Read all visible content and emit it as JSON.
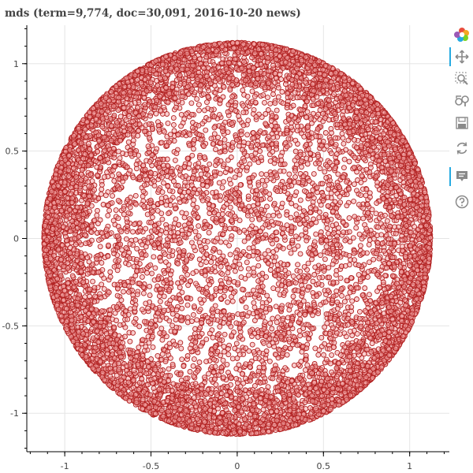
{
  "title": "mds (term=9,774, doc=30,091, 2016-10-20 news)",
  "chart_data": {
    "type": "scatter",
    "title": "mds (term=9,774, doc=30,091, 2016-10-20 news)",
    "xlabel": "",
    "ylabel": "",
    "xlim": [
      -1.22,
      1.23
    ],
    "ylim": [
      -1.22,
      1.22
    ],
    "xticks": [
      -1,
      -0.5,
      0,
      0.5,
      1
    ],
    "yticks": [
      -1,
      -0.5,
      0,
      0.5,
      1
    ],
    "xtick_labels": [
      "-1",
      "-0.5",
      "0",
      "0.5",
      "1"
    ],
    "ytick_labels": [
      "-1",
      "-0.5",
      "0",
      "0.5",
      "1"
    ],
    "grid": true,
    "point_count": 9774,
    "disk_radius": 1.12,
    "disk_center": [
      0,
      0
    ],
    "marker_fill": "#f4a6a6",
    "marker_edge": "#b22222"
  },
  "toolbar": {
    "tools": [
      {
        "name": "bokeh-logo-icon",
        "interactable": false,
        "active": false
      },
      {
        "name": "pan-tool-icon",
        "interactable": true,
        "active": true
      },
      {
        "name": "box-zoom-tool-icon",
        "interactable": true,
        "active": false
      },
      {
        "name": "wheel-zoom-tool-icon",
        "interactable": true,
        "active": false
      },
      {
        "name": "save-tool-icon",
        "interactable": true,
        "active": false
      },
      {
        "name": "reset-tool-icon",
        "interactable": true,
        "active": false
      },
      {
        "name": "hover-tool-icon",
        "interactable": true,
        "active": true
      },
      {
        "name": "help-tool-icon",
        "interactable": true,
        "active": false
      }
    ]
  }
}
